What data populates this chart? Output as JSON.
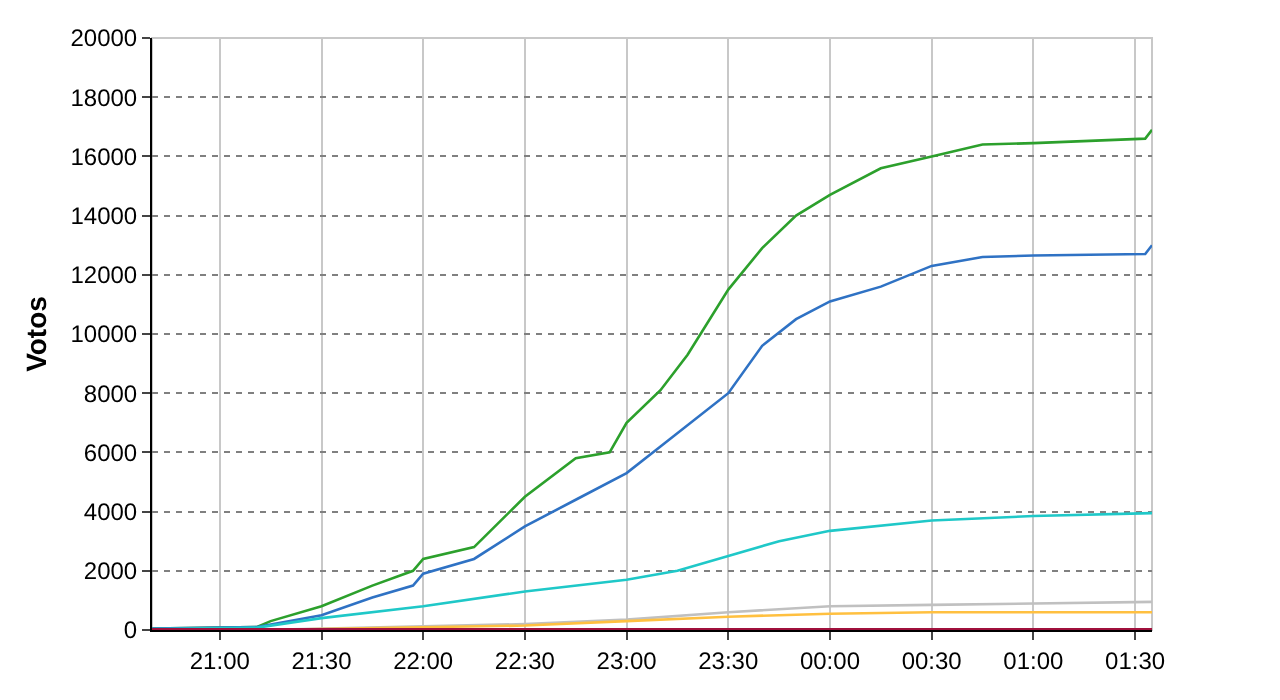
{
  "chart_data": {
    "type": "line",
    "ylabel": "Votos",
    "xlim": [
      "2000-01-01T20:40",
      "2000-01-02T01:35"
    ],
    "ylim": [
      0,
      20000
    ],
    "xticks": [
      {
        "value": "2000-01-01T21:00",
        "label": "21:00"
      },
      {
        "value": "2000-01-01T21:30",
        "label": "21:30"
      },
      {
        "value": "2000-01-01T22:00",
        "label": "22:00"
      },
      {
        "value": "2000-01-01T22:30",
        "label": "22:30"
      },
      {
        "value": "2000-01-01T23:00",
        "label": "23:00"
      },
      {
        "value": "2000-01-01T23:30",
        "label": "23:30"
      },
      {
        "value": "2000-01-02T00:00",
        "label": "00:00"
      },
      {
        "value": "2000-01-02T00:30",
        "label": "00:30"
      },
      {
        "value": "2000-01-02T01:00",
        "label": "01:00"
      },
      {
        "value": "2000-01-02T01:30",
        "label": "01:30"
      }
    ],
    "yticks": [
      0,
      2000,
      4000,
      6000,
      8000,
      10000,
      12000,
      14000,
      16000,
      18000,
      20000
    ],
    "grid": true,
    "marker": "none",
    "line_style": "solid",
    "series": [
      {
        "color": "#2ca02c",
        "x": [
          "2000-01-01T20:40",
          "2000-01-01T21:11",
          "2000-01-01T21:15",
          "2000-01-01T21:30",
          "2000-01-01T21:45",
          "2000-01-01T21:57",
          "2000-01-01T22:00",
          "2000-01-01T22:15",
          "2000-01-01T22:30",
          "2000-01-01T22:45",
          "2000-01-01T22:55",
          "2000-01-01T23:00",
          "2000-01-01T23:10",
          "2000-01-01T23:18",
          "2000-01-01T23:30",
          "2000-01-01T23:40",
          "2000-01-01T23:50",
          "2000-01-02T00:00",
          "2000-01-02T00:15",
          "2000-01-02T00:30",
          "2000-01-02T00:45",
          "2000-01-02T01:00",
          "2000-01-02T01:33",
          "2000-01-02T01:35"
        ],
        "values": [
          50,
          100,
          300,
          800,
          1500,
          2000,
          2400,
          2800,
          4500,
          5800,
          6000,
          7000,
          8100,
          9300,
          11500,
          12900,
          14000,
          14700,
          15600,
          16000,
          16400,
          16450,
          16600,
          16900
        ]
      },
      {
        "color": "#2f72c4",
        "x": [
          "2000-01-01T20:40",
          "2000-01-01T21:11",
          "2000-01-01T21:30",
          "2000-01-01T21:45",
          "2000-01-01T21:57",
          "2000-01-01T22:00",
          "2000-01-01T22:15",
          "2000-01-01T22:30",
          "2000-01-01T22:45",
          "2000-01-01T23:00",
          "2000-01-01T23:10",
          "2000-01-01T23:30",
          "2000-01-01T23:40",
          "2000-01-01T23:50",
          "2000-01-02T00:00",
          "2000-01-02T00:15",
          "2000-01-02T00:30",
          "2000-01-02T00:45",
          "2000-01-02T01:00",
          "2000-01-02T01:33",
          "2000-01-02T01:35"
        ],
        "values": [
          50,
          100,
          500,
          1100,
          1500,
          1900,
          2400,
          3500,
          4400,
          5300,
          6200,
          8000,
          9600,
          10500,
          11100,
          11600,
          12300,
          12600,
          12650,
          12700,
          13000
        ]
      },
      {
        "color": "#1fc8c8",
        "x": [
          "2000-01-01T20:40",
          "2000-01-01T21:11",
          "2000-01-01T21:30",
          "2000-01-01T22:00",
          "2000-01-01T22:30",
          "2000-01-01T23:00",
          "2000-01-01T23:15",
          "2000-01-01T23:30",
          "2000-01-01T23:45",
          "2000-01-02T00:00",
          "2000-01-02T00:30",
          "2000-01-02T01:00",
          "2000-01-02T01:35"
        ],
        "values": [
          30,
          80,
          400,
          800,
          1300,
          1700,
          2000,
          2500,
          3000,
          3350,
          3700,
          3850,
          3950
        ]
      },
      {
        "color": "#c0c0c0",
        "x": [
          "2000-01-01T20:40",
          "2000-01-01T21:12",
          "2000-01-01T22:30",
          "2000-01-01T23:00",
          "2000-01-01T23:30",
          "2000-01-02T00:00",
          "2000-01-02T00:30",
          "2000-01-02T01:35"
        ],
        "values": [
          0,
          0,
          200,
          350,
          600,
          800,
          850,
          950
        ]
      },
      {
        "color": "#ffc040",
        "x": [
          "2000-01-01T20:40",
          "2000-01-01T21:12",
          "2000-01-01T22:30",
          "2000-01-01T23:00",
          "2000-01-01T23:30",
          "2000-01-02T00:00",
          "2000-01-02T00:30",
          "2000-01-02T01:35"
        ],
        "values": [
          0,
          0,
          150,
          300,
          450,
          550,
          600,
          600
        ]
      },
      {
        "color": "#a0103c",
        "x": [
          "2000-01-01T20:40",
          "2000-01-02T01:35"
        ],
        "values": [
          20,
          20
        ]
      }
    ]
  }
}
